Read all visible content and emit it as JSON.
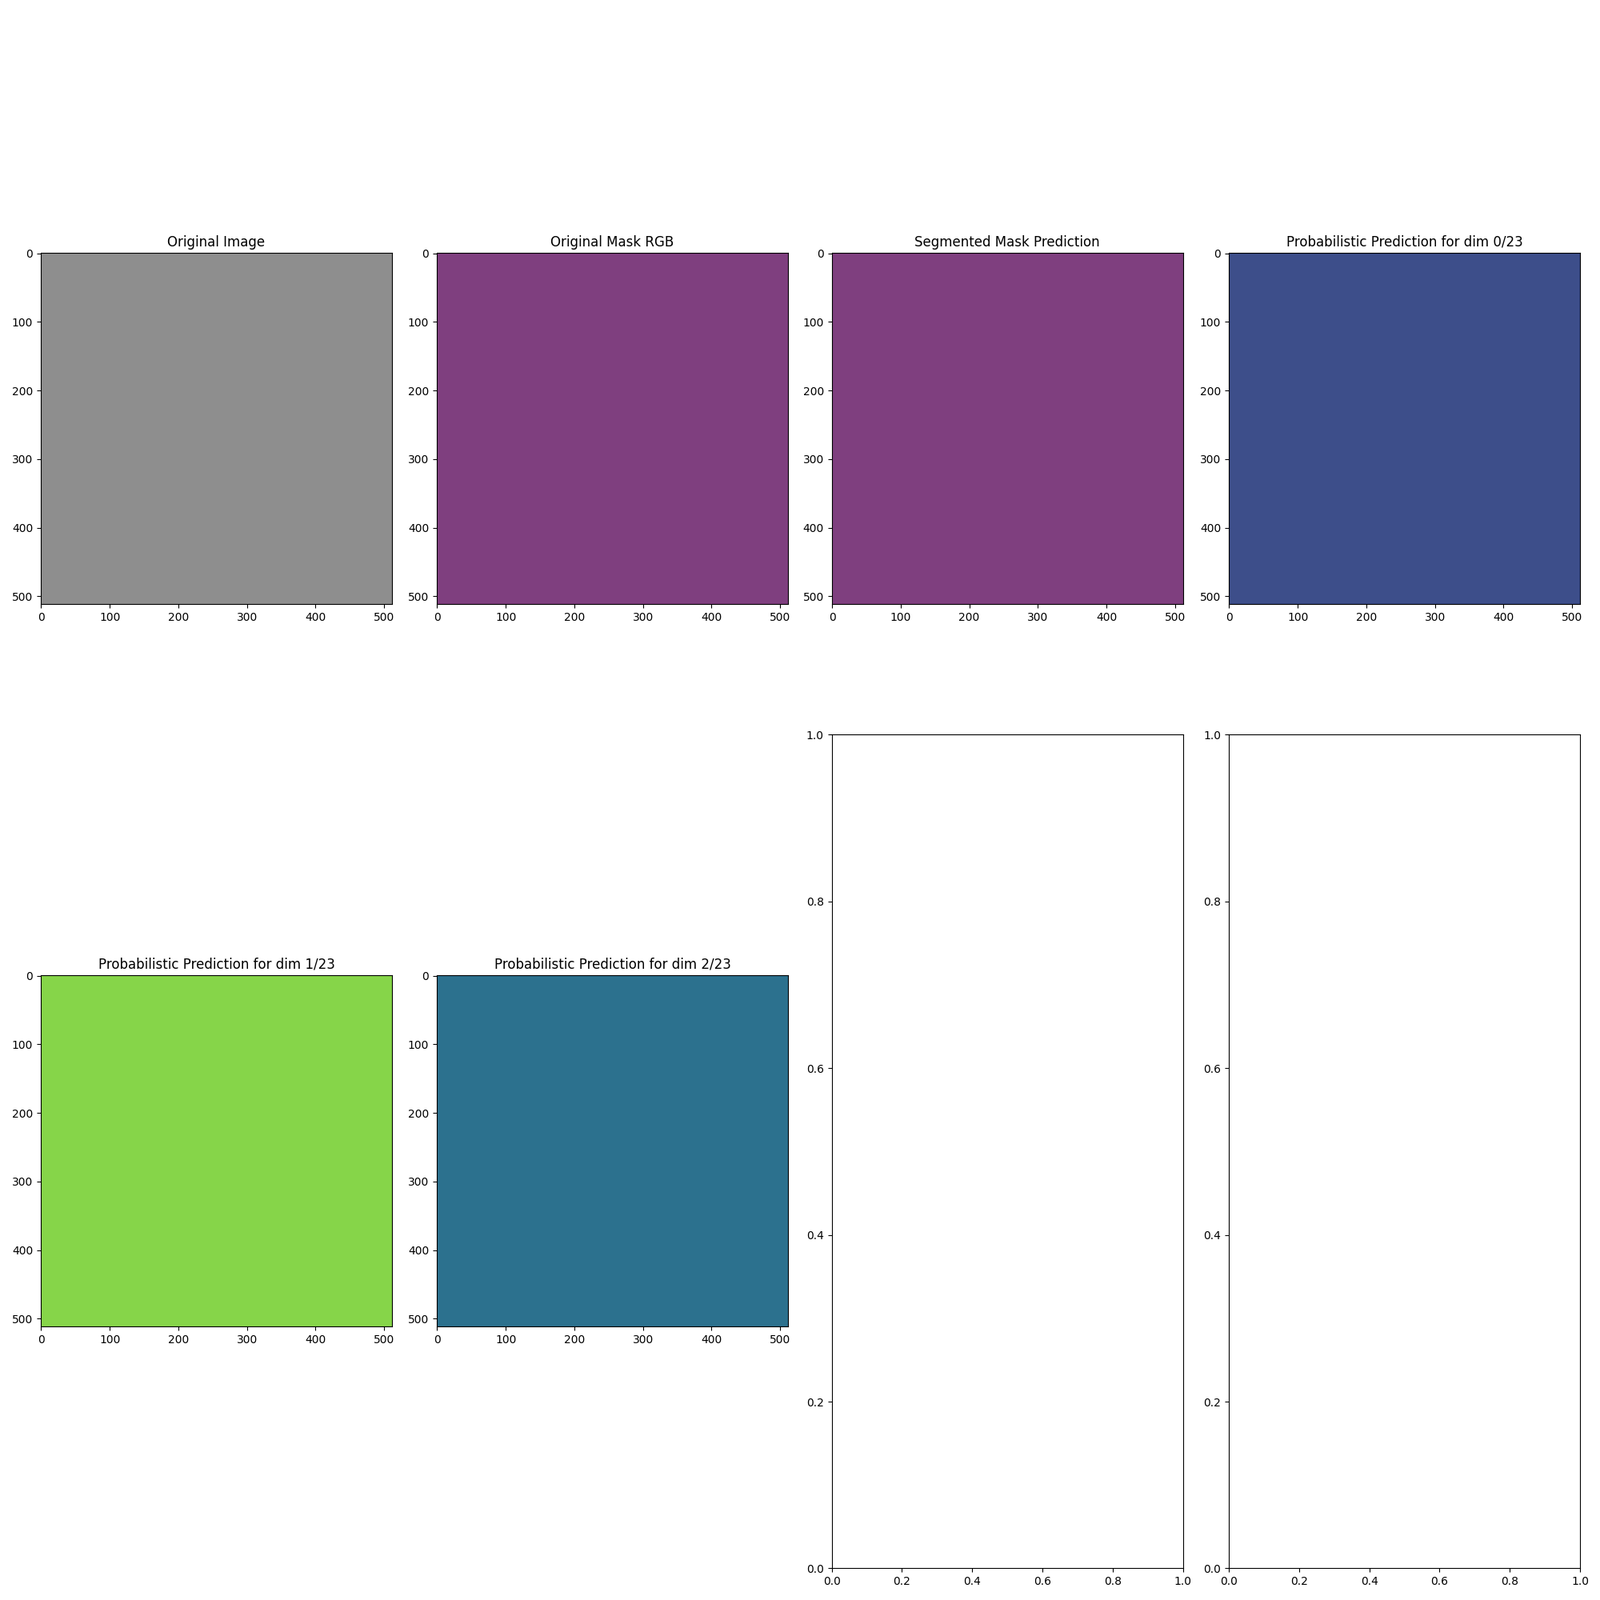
{
  "chart_data": [
    {
      "type": "image",
      "title": "Original Image",
      "color": "#8e8e8e",
      "xlim": [
        -0.5,
        511.5
      ],
      "ylim": [
        511.5,
        -0.5
      ],
      "xticks": [
        0,
        100,
        200,
        300,
        400,
        500
      ],
      "yticks": [
        0,
        100,
        200,
        300,
        400,
        500
      ]
    },
    {
      "type": "image",
      "title": "Original Mask RGB",
      "color": "#7f3f7f",
      "xlim": [
        -0.5,
        511.5
      ],
      "ylim": [
        511.5,
        -0.5
      ],
      "xticks": [
        0,
        100,
        200,
        300,
        400,
        500
      ],
      "yticks": [
        0,
        100,
        200,
        300,
        400,
        500
      ]
    },
    {
      "type": "image",
      "title": "Segmented Mask Prediction",
      "color": "#7f3f7f",
      "xlim": [
        -0.5,
        511.5
      ],
      "ylim": [
        511.5,
        -0.5
      ],
      "xticks": [
        0,
        100,
        200,
        300,
        400,
        500
      ],
      "yticks": [
        0,
        100,
        200,
        300,
        400,
        500
      ]
    },
    {
      "type": "image",
      "title": "Probabilistic Prediction for dim 0/23",
      "color": "#3d4e8a",
      "xlim": [
        -0.5,
        511.5
      ],
      "ylim": [
        511.5,
        -0.5
      ],
      "xticks": [
        0,
        100,
        200,
        300,
        400,
        500
      ],
      "yticks": [
        0,
        100,
        200,
        300,
        400,
        500
      ]
    },
    {
      "type": "image",
      "title": "Probabilistic Prediction for dim 1/23",
      "color": "#86d549",
      "xlim": [
        -0.5,
        511.5
      ],
      "ylim": [
        511.5,
        -0.5
      ],
      "xticks": [
        0,
        100,
        200,
        300,
        400,
        500
      ],
      "yticks": [
        0,
        100,
        200,
        300,
        400,
        500
      ]
    },
    {
      "type": "image",
      "title": "Probabilistic Prediction for dim 2/23",
      "color": "#2c718e",
      "xlim": [
        -0.5,
        511.5
      ],
      "ylim": [
        511.5,
        -0.5
      ],
      "xticks": [
        0,
        100,
        200,
        300,
        400,
        500
      ],
      "yticks": [
        0,
        100,
        200,
        300,
        400,
        500
      ]
    },
    {
      "type": "empty",
      "xlim": [
        0,
        1
      ],
      "ylim": [
        0,
        1
      ],
      "xticks": [
        {
          "value": 0,
          "label": "0.0"
        },
        {
          "value": 0.2,
          "label": "0.2"
        },
        {
          "value": 0.4,
          "label": "0.4"
        },
        {
          "value": 0.6,
          "label": "0.6"
        },
        {
          "value": 0.8,
          "label": "0.8"
        },
        {
          "value": 1,
          "label": "1.0"
        }
      ],
      "yticks": [
        {
          "value": 0,
          "label": "0.0"
        },
        {
          "value": 0.2,
          "label": "0.2"
        },
        {
          "value": 0.4,
          "label": "0.4"
        },
        {
          "value": 0.6,
          "label": "0.6"
        },
        {
          "value": 0.8,
          "label": "0.8"
        },
        {
          "value": 1,
          "label": "1.0"
        }
      ]
    },
    {
      "type": "empty",
      "xlim": [
        0,
        1
      ],
      "ylim": [
        0,
        1
      ],
      "xticks": [
        {
          "value": 0,
          "label": "0.0"
        },
        {
          "value": 0.2,
          "label": "0.2"
        },
        {
          "value": 0.4,
          "label": "0.4"
        },
        {
          "value": 0.6,
          "label": "0.6"
        },
        {
          "value": 0.8,
          "label": "0.8"
        },
        {
          "value": 1,
          "label": "1.0"
        }
      ],
      "yticks": [
        {
          "value": 0,
          "label": "0.0"
        },
        {
          "value": 0.2,
          "label": "0.2"
        },
        {
          "value": 0.4,
          "label": "0.4"
        },
        {
          "value": 0.6,
          "label": "0.6"
        },
        {
          "value": 0.8,
          "label": "0.8"
        },
        {
          "value": 1,
          "label": "1.0"
        }
      ]
    }
  ]
}
